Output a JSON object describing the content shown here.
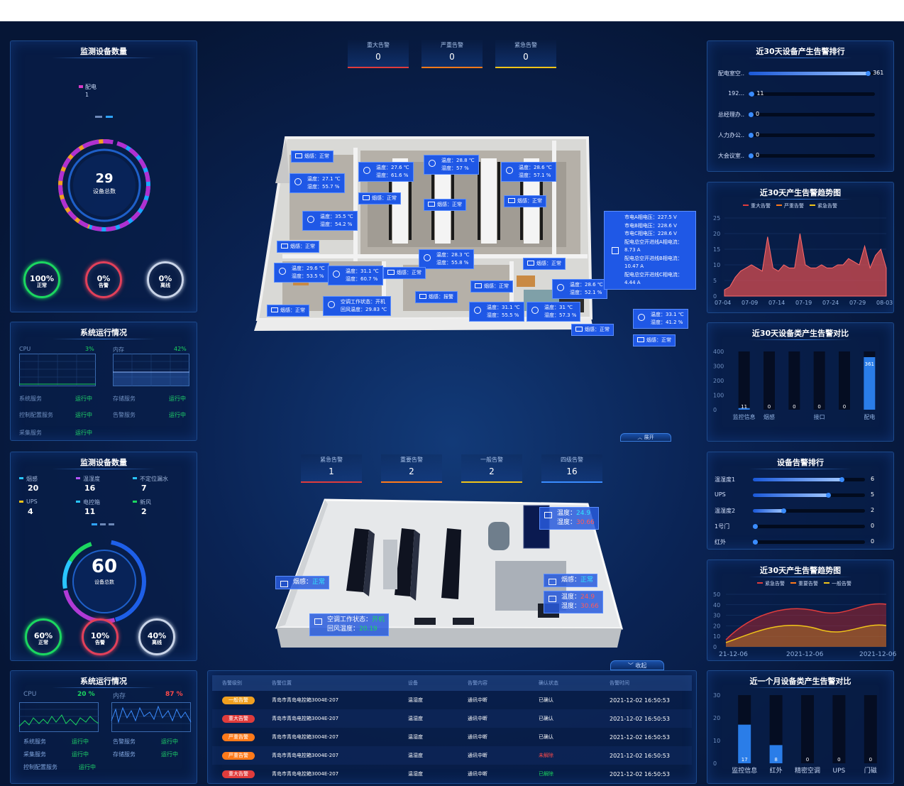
{
  "top_alarms": [
    {
      "label": "重大告警",
      "value": "0",
      "color": "#e03c3c"
    },
    {
      "label": "严重告警",
      "value": "0",
      "color": "#ff7a1a"
    },
    {
      "label": "紧急告警",
      "value": "0",
      "color": "#f0c419"
    }
  ],
  "p1": {
    "title": "监测设备数量",
    "legend_label": "配电",
    "legend_value": "1",
    "total": "29",
    "total_label": "设备总数",
    "stats": [
      {
        "pct": "100%",
        "label": "正常",
        "color": "#1bd760"
      },
      {
        "pct": "0%",
        "label": "告警",
        "color": "#e2405a"
      },
      {
        "pct": "0%",
        "label": "离线",
        "color": "#c9d4e8"
      }
    ]
  },
  "p2": {
    "title": "系统运行情况",
    "cpu_label": "CPU",
    "cpu_val": "3%",
    "mem_label": "内存",
    "mem_val": "42%",
    "services": [
      {
        "name": "系统服务",
        "status": "运行中"
      },
      {
        "name": "存储服务",
        "status": "运行中"
      },
      {
        "name": "控制配置服务",
        "status": "运行中"
      },
      {
        "name": "告警服务",
        "status": "运行中"
      },
      {
        "name": "采集服务",
        "status": "运行中"
      }
    ]
  },
  "r1": {
    "title": "近30天设备产生告警排行",
    "items": [
      {
        "name": "配电室空..",
        "value": "361",
        "frac": 0.95
      },
      {
        "name": "192...",
        "value": "11",
        "frac": 0.03
      },
      {
        "name": "总经理办..",
        "value": "0",
        "frac": 0
      },
      {
        "name": "人力办公..",
        "value": "0",
        "frac": 0
      },
      {
        "name": "大会议室..",
        "value": "0",
        "frac": 0
      }
    ]
  },
  "r2": {
    "title": "近30天产生告警趋势图",
    "legend": [
      "重大告警",
      "严重告警",
      "紧急告警"
    ],
    "y_ticks": [
      "25",
      "20",
      "15",
      "10",
      "5",
      "0"
    ],
    "x_ticks": [
      "07-04",
      "07-09",
      "07-14",
      "07-19",
      "07-24",
      "07-29",
      "08-03"
    ]
  },
  "r3": {
    "title": "近30天设备类产生告警对比",
    "y_ticks": [
      "400",
      "300",
      "200",
      "100",
      "0"
    ],
    "categories": [
      "监控信息",
      "烟感",
      "",
      "接口",
      "",
      "配电"
    ],
    "values": [
      11,
      0,
      0,
      0,
      0,
      361
    ]
  },
  "expand_label": "展开",
  "floor_tags": [
    {
      "t": "烟感：正常",
      "x": 410,
      "y": 212
    },
    {
      "t": "温度：27.6 ℃|湿度：61.6 %",
      "x": 505,
      "y": 228
    },
    {
      "t": "温度：28.8 ℃|湿度：57 %",
      "x": 597,
      "y": 218
    },
    {
      "t": "温度：28.6 ℃|湿度：57.1 %",
      "x": 706,
      "y": 228
    },
    {
      "t": "温度：27.1 ℃|湿度：55.7 %",
      "x": 408,
      "y": 244
    },
    {
      "t": "烟感：正常",
      "x": 505,
      "y": 271
    },
    {
      "t": "烟感：正常",
      "x": 597,
      "y": 280
    },
    {
      "t": "烟感：正常",
      "x": 710,
      "y": 275
    },
    {
      "t": "温度：35.5 ℃|湿度：54.2 %",
      "x": 426,
      "y": 297
    },
    {
      "t": "烟感：正常",
      "x": 390,
      "y": 339
    },
    {
      "t": "温度：28.3 ℃|湿度：55.8 %",
      "x": 590,
      "y": 351
    },
    {
      "t": "烟感：正常",
      "x": 737,
      "y": 363
    },
    {
      "t": "温度：29.6 ℃|湿度：53.5 %",
      "x": 386,
      "y": 370
    },
    {
      "t": "温度：31.1 ℃|湿度：60.7 %",
      "x": 462,
      "y": 374
    },
    {
      "t": "烟感：正常",
      "x": 540,
      "y": 376
    },
    {
      "t": "烟感：正常",
      "x": 663,
      "y": 395
    },
    {
      "t": "温度：28.6 ℃|湿度：52.1 %",
      "x": 778,
      "y": 393
    },
    {
      "t": "烟感：报警",
      "x": 585,
      "y": 410
    },
    {
      "t": "空调工作状态：开机|回风温度：29.83 ℃",
      "x": 455,
      "y": 417
    },
    {
      "t": "烟感：正常",
      "x": 376,
      "y": 429
    },
    {
      "t": "温度：31.1 ℃|湿度：55.5 %",
      "x": 661,
      "y": 425
    },
    {
      "t": "温度：31 ℃|湿度：57.3 %",
      "x": 742,
      "y": 425
    },
    {
      "t": "温度：33.1 ℃|湿度：41.2 %",
      "x": 892,
      "y": 435
    },
    {
      "t": "烟感：正常",
      "x": 805,
      "y": 456
    },
    {
      "t": "烟感：正常",
      "x": 892,
      "y": 471
    }
  ],
  "power_tag": [
    "市电A相电压：227.5 V",
    "市电B相电压：228.6 V",
    "市电C相电压：228.6 V",
    "配电总空开进线A相电流：",
    "8.73 A",
    "配电总空开进线B相电流：",
    "10.47 A",
    "配电总空开进线C相电流：",
    "4.44 A"
  ],
  "p3": {
    "title": "监测设备数量",
    "counts": [
      {
        "name": "烟感",
        "v": "20",
        "c": "#29c5ff"
      },
      {
        "name": "温湿度",
        "v": "16",
        "c": "#b555ff"
      },
      {
        "name": "不定位漏水",
        "v": "7",
        "c": "#29c5ff"
      },
      {
        "name": "UPS",
        "v": "4",
        "c": "#f0c419"
      },
      {
        "name": "电控箱",
        "v": "11",
        "c": "#29c5ff"
      },
      {
        "name": "新风",
        "v": "2",
        "c": "#1bd760"
      }
    ],
    "total": "60",
    "total_label": "设备总数",
    "stats": [
      {
        "pct": "60%",
        "label": "正常",
        "color": "#1bd760"
      },
      {
        "pct": "10%",
        "label": "告警",
        "color": "#e2405a"
      },
      {
        "pct": "40%",
        "label": "离线",
        "color": "#c9d4e8"
      }
    ]
  },
  "p4": {
    "title": "系统运行情况",
    "cpu_label": "CPU",
    "cpu_val": "20 %",
    "mem_label": "内存",
    "mem_val": "87 %",
    "services": [
      {
        "name": "系统服务",
        "status": "运行中"
      },
      {
        "name": "告警服务",
        "status": "运行中"
      },
      {
        "name": "采集服务",
        "status": "运行中"
      },
      {
        "name": "存储服务",
        "status": "运行中"
      },
      {
        "name": "控制配置服务",
        "status": "运行中"
      }
    ]
  },
  "mid_alarms": [
    {
      "label": "紧急告警",
      "value": "1",
      "color": "#e03c3c"
    },
    {
      "label": "重要告警",
      "value": "2",
      "color": "#ff7a1a"
    },
    {
      "label": "一般告警",
      "value": "2",
      "color": "#f0c419"
    },
    {
      "label": "四级告警",
      "value": "16",
      "color": "#3a8cff"
    }
  ],
  "room_tags": [
    {
      "lines": [
        [
          "温度：",
          "24.9",
          "#2fe6ff"
        ],
        [
          "湿度：",
          "30.66",
          "#ff5a5a"
        ]
      ],
      "x": 760,
      "y": 714
    },
    {
      "lines": [
        [
          "烟感：",
          "正常",
          "#2fe6ff"
        ]
      ],
      "x": 388,
      "y": 811
    },
    {
      "lines": [
        [
          "烟感：",
          "正常",
          "#2fe6ff"
        ]
      ],
      "x": 766,
      "y": 808
    },
    {
      "lines": [
        [
          "温度：",
          "24.9",
          "#ff5a5a"
        ],
        [
          "湿度：",
          "30.66",
          "#ff5a5a"
        ]
      ],
      "x": 766,
      "y": 832
    },
    {
      "lines": [
        [
          "空调工作状态：",
          "开机",
          "#1bd760"
        ],
        [
          "回风温度：",
          "20.19",
          "#1bd760"
        ]
      ],
      "x": 436,
      "y": 864
    }
  ],
  "collapse_label": "收起",
  "r4": {
    "title": "设备告警排行",
    "items": [
      {
        "name": "温湿度1",
        "value": "6",
        "frac": 0.8
      },
      {
        "name": "UPS",
        "value": "5",
        "frac": 0.68
      },
      {
        "name": "温湿度2",
        "value": "2",
        "frac": 0.28
      },
      {
        "name": "1号门",
        "value": "0",
        "frac": 0
      },
      {
        "name": "红外",
        "value": "0",
        "frac": 0
      }
    ]
  },
  "r5": {
    "title": "近30天产生告警趋势图",
    "legend": [
      "紧急告警",
      "重要告警",
      "一般告警"
    ],
    "y_ticks": [
      "50",
      "40",
      "30",
      "20",
      "10",
      "0"
    ],
    "x_ticks": [
      "21-12-06",
      "2021-12-06",
      "2021-12-06"
    ]
  },
  "r6": {
    "title": "近一个月设备类产生告警对比",
    "y_ticks": [
      "30",
      "20",
      "10",
      "0"
    ],
    "categories": [
      "监控信息",
      "红外",
      "精密空调",
      "UPS",
      "门磁"
    ],
    "values": [
      17,
      8,
      0,
      0,
      0
    ]
  },
  "table": {
    "headers": [
      "告警级别",
      "告警位置",
      "设备",
      "告警内容",
      "确认状态",
      "告警时间"
    ],
    "rows": [
      {
        "level": "一般告警",
        "lc": "#f0a020",
        "loc": "青岛市青岛电控箱3004E-207",
        "dev": "温湿度",
        "content": "通讯中断",
        "status": "已确认",
        "sc": "#ffffff",
        "time": "2021-12-02  16:50:53"
      },
      {
        "level": "重大告警",
        "lc": "#e03c3c",
        "loc": "青岛市青岛电控箱3004E-207",
        "dev": "温湿度",
        "content": "通讯中断",
        "status": "已确认",
        "sc": "#ffffff",
        "time": "2021-12-02  16:50:53"
      },
      {
        "level": "严重告警",
        "lc": "#ff7a1a",
        "loc": "青岛市青岛电控箱3004E-207",
        "dev": "温湿度",
        "content": "通讯中断",
        "status": "已确认",
        "sc": "#ffffff",
        "time": "2021-12-02  16:50:53"
      },
      {
        "level": "严重告警",
        "lc": "#ff7a1a",
        "loc": "青岛市青岛电控箱3004E-207",
        "dev": "温湿度",
        "content": "通讯中断",
        "status": "未解除",
        "sc": "#ff4a4a",
        "time": "2021-12-02  16:50:53"
      },
      {
        "level": "重大告警",
        "lc": "#e03c3c",
        "loc": "青岛市青岛电控箱3004E-207",
        "dev": "温湿度",
        "content": "通讯中断",
        "status": "已解除",
        "sc": "#1bd760",
        "time": "2021-12-02  16:50:53"
      }
    ]
  }
}
